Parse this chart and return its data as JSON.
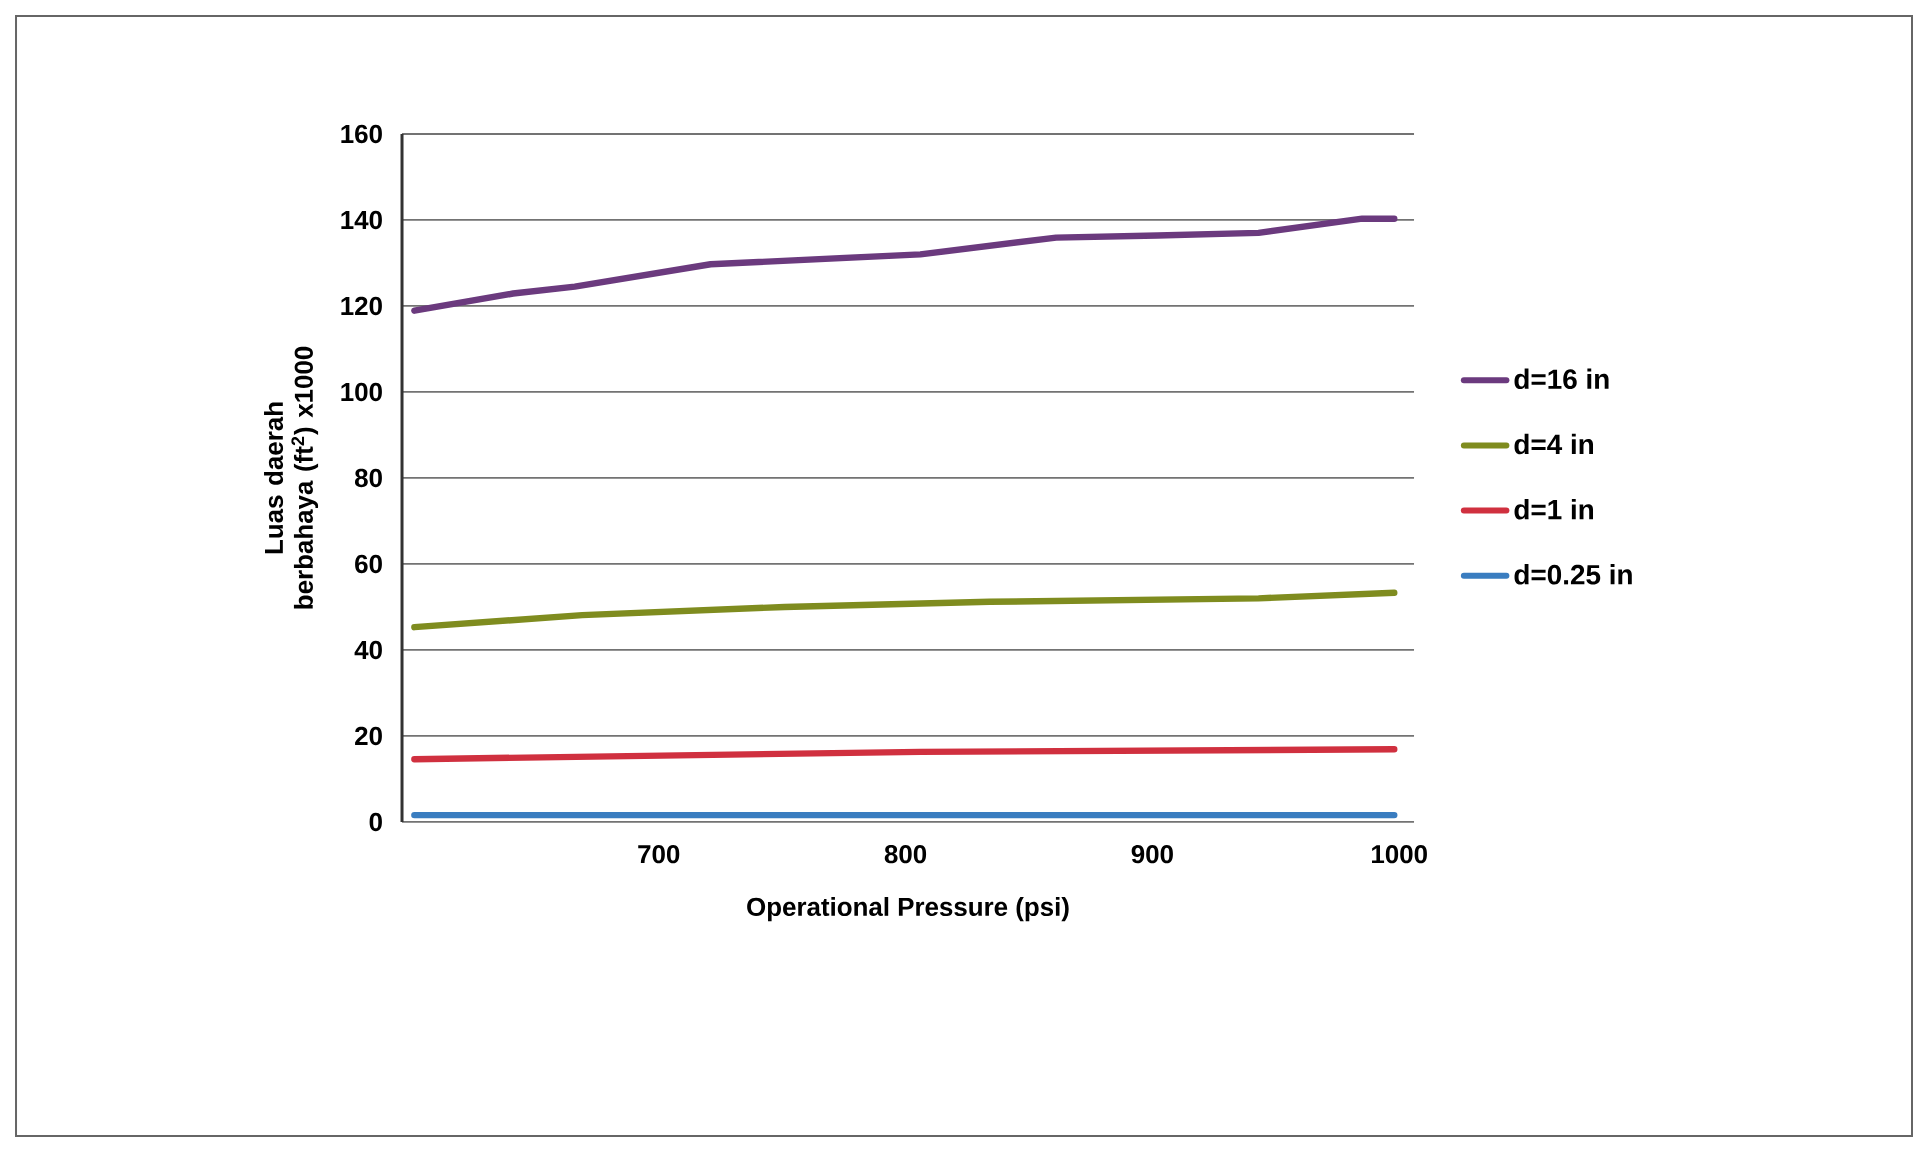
{
  "chart_data": {
    "type": "line",
    "xlabel": "Operational Pressure (psi)",
    "ylabel": "Luas daerah berbahaya (ft$^{2}$) x1000",
    "xlim": [
      596,
      1006
    ],
    "xticks": [
      700,
      800,
      900,
      1000
    ],
    "ylim": [
      0,
      160
    ],
    "yticks": [
      0,
      20,
      40,
      60,
      80,
      100,
      120,
      140,
      160
    ],
    "grid": "y",
    "legend": "right",
    "marker": "none",
    "line_style": "solid",
    "series": [
      {
        "name": "d=16 in",
        "color": "#6b3a7e",
        "x": [
          601,
          641,
          666,
          721,
          806,
          861,
          902,
          943,
          985,
          998
        ],
        "values": [
          118.9,
          122.9,
          124.5,
          129.7,
          132,
          135.9,
          136.4,
          137,
          140.3,
          140.3
        ]
      },
      {
        "name": "d=4 in",
        "color": "#7f8c1f",
        "x": [
          601,
          669,
          751,
          834,
          943,
          998
        ],
        "values": [
          45.3,
          48.1,
          50,
          51.2,
          52,
          53.3
        ]
      },
      {
        "name": "d=1 in",
        "color": "#d0303f",
        "x": [
          601,
          806,
          998
        ],
        "values": [
          14.6,
          16.3,
          16.9
        ]
      },
      {
        "name": "d=0.25   in",
        "color": "#3a7dc0",
        "x": [
          601,
          998
        ],
        "values": [
          1.6,
          1.6
        ]
      }
    ]
  }
}
